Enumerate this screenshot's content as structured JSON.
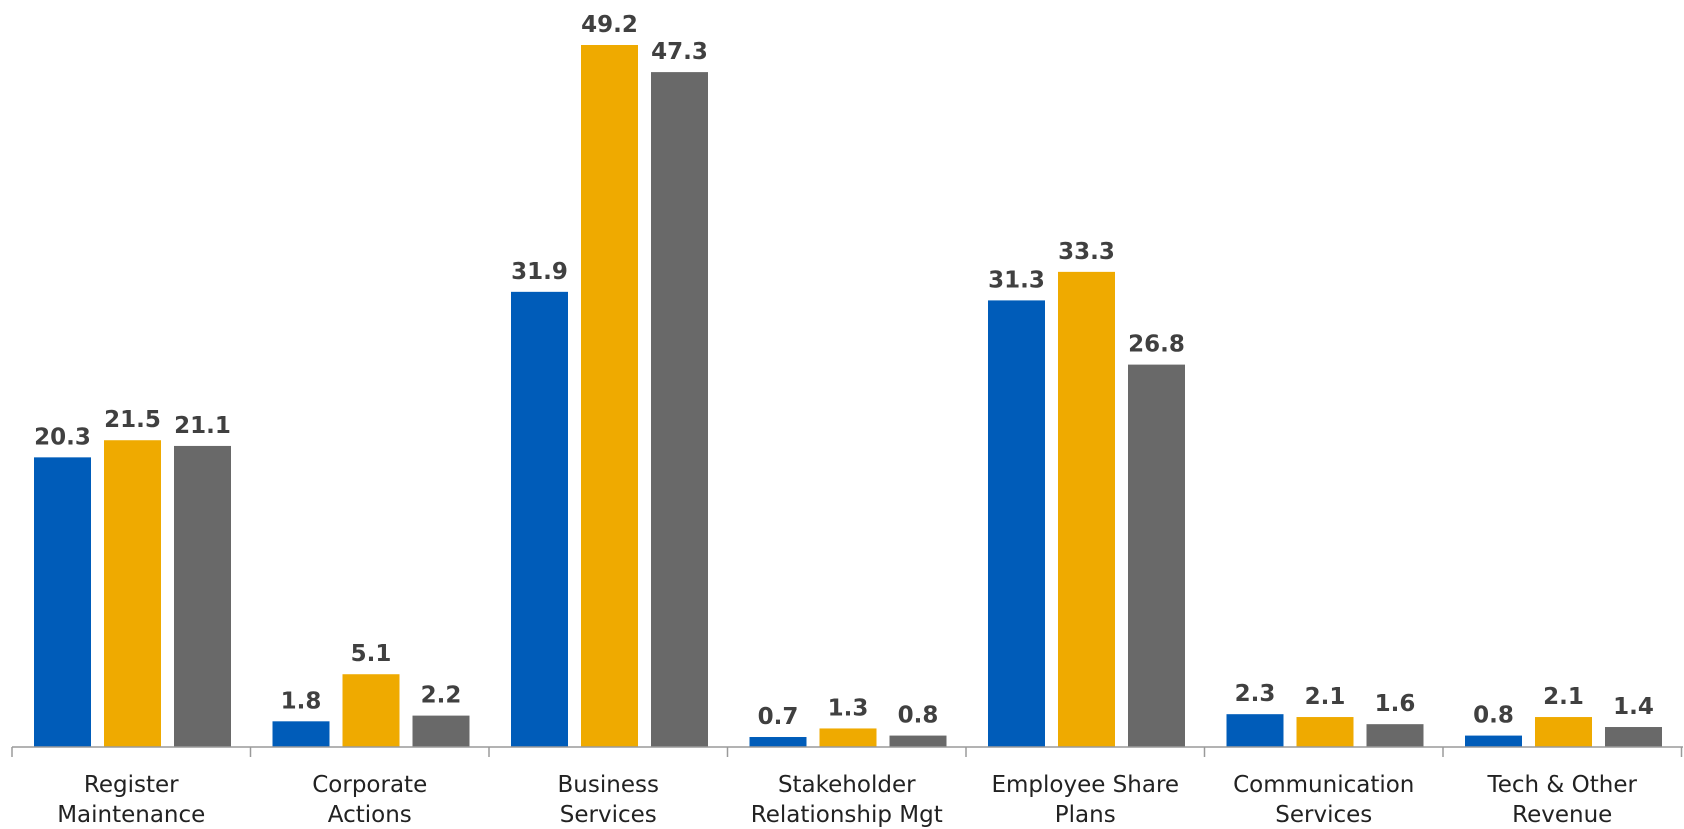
{
  "chart_data": {
    "type": "bar",
    "categories": [
      [
        "Register",
        "Maintenance"
      ],
      [
        "Corporate",
        "Actions"
      ],
      [
        "Business",
        "Services"
      ],
      [
        "Stakeholder",
        "Relationship Mgt"
      ],
      [
        "Employee Share",
        "Plans"
      ],
      [
        "Communication",
        "Services"
      ],
      [
        "Tech & Other",
        "Revenue"
      ]
    ],
    "series": [
      {
        "color": "#005CB9",
        "values": [
          20.3,
          1.8,
          31.9,
          0.7,
          31.3,
          2.3,
          0.8
        ]
      },
      {
        "color": "#EFAA00",
        "values": [
          21.5,
          5.1,
          49.2,
          1.3,
          33.3,
          2.1,
          2.1
        ]
      },
      {
        "color": "#696969",
        "values": [
          21.1,
          2.2,
          47.3,
          0.8,
          26.8,
          1.6,
          1.4
        ]
      }
    ],
    "data_labels": true,
    "grid": false,
    "legend": "none",
    "ylim": [
      0,
      50
    ]
  }
}
